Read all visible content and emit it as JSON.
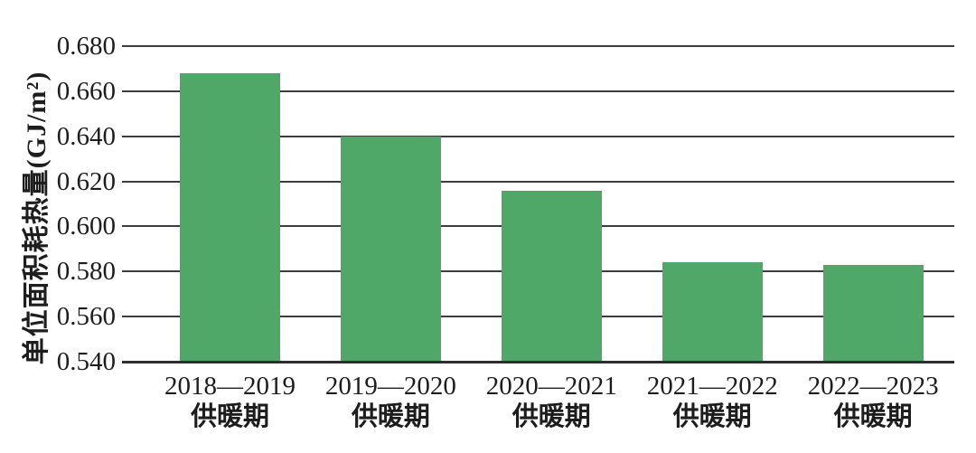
{
  "chart_data": {
    "type": "bar",
    "title": "",
    "xlabel": "",
    "ylabel": "单位面积耗热量(GJ/m²)",
    "categories": [
      {
        "line1": "2018—2019",
        "line2": "供暖期"
      },
      {
        "line1": "2019—2020",
        "line2": "供暖期"
      },
      {
        "line1": "2020—2021",
        "line2": "供暖期"
      },
      {
        "line1": "2021—2022",
        "line2": "供暖期"
      },
      {
        "line1": "2022—2023",
        "line2": "供暖期"
      }
    ],
    "values": [
      0.668,
      0.64,
      0.616,
      0.584,
      0.583
    ],
    "ylim": [
      0.54,
      0.68
    ],
    "ytick_step": 0.02,
    "ytick_labels": [
      "0.680",
      "0.660",
      "0.640",
      "0.620",
      "0.600",
      "0.580",
      "0.560",
      "0.540"
    ],
    "grid": true,
    "legend": "none",
    "colors": {
      "bar": "#50a868",
      "gridline": "#3d3d3d",
      "axis": "#2e2e2e",
      "text": "#1d1d1d"
    }
  }
}
